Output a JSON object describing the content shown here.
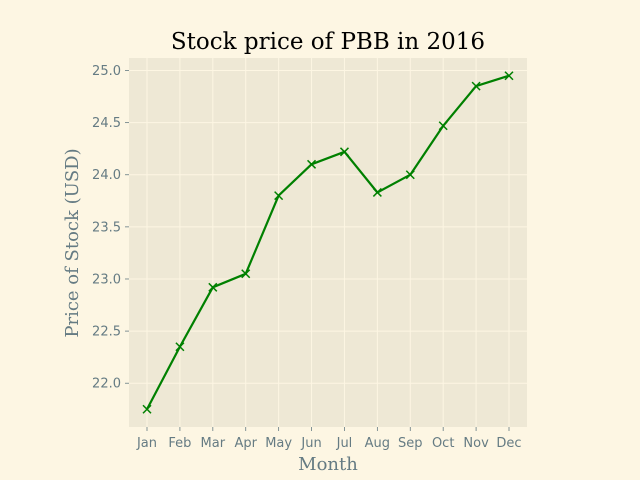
{
  "chart_data": {
    "type": "line",
    "title": "Stock price of PBB in 2016",
    "xlabel": "Month",
    "ylabel": "Price of Stock (USD)",
    "categories": [
      "Jan",
      "Feb",
      "Mar",
      "Apr",
      "May",
      "Jun",
      "Jul",
      "Aug",
      "Sep",
      "Oct",
      "Nov",
      "Dec"
    ],
    "series": [
      {
        "values": [
          21.75,
          22.35,
          22.92,
          23.05,
          23.8,
          24.1,
          24.22,
          23.83,
          24.0,
          24.47,
          24.85,
          24.95
        ],
        "color": "#008000",
        "marker": "x"
      }
    ],
    "ylim": [
      21.58,
      25.12
    ],
    "yticks": [
      22.0,
      22.5,
      23.0,
      23.5,
      24.0,
      24.5,
      25.0
    ],
    "ytick_labels": [
      "22.0",
      "22.5",
      "23.0",
      "23.5",
      "24.0",
      "24.5",
      "25.0"
    ],
    "grid": true,
    "colors": {
      "background": "#fdf6e3",
      "plot_background": "#eee8d5",
      "text": "#657b83"
    }
  }
}
